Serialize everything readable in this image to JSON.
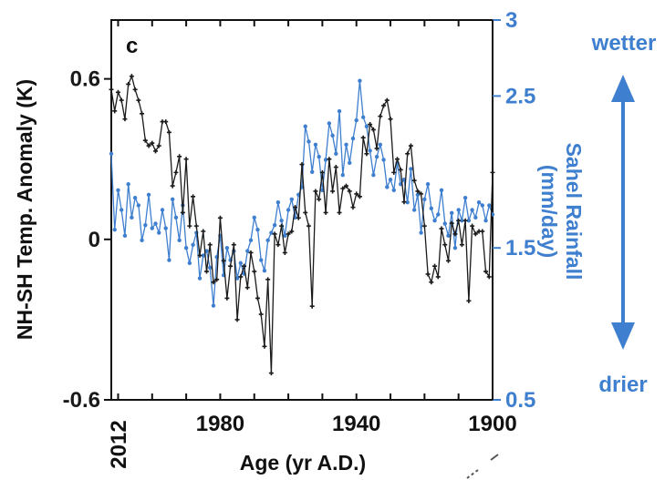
{
  "chart_data": {
    "type": "line",
    "panel_label": "c",
    "xlabel": "Age (yr A.D.)",
    "x_start_label": "2012",
    "xlim": [
      2012,
      1900
    ],
    "x_ticks": [
      1980,
      1940,
      1900
    ],
    "y_left": {
      "label": "NH-SH Temp. Anomaly  (K)",
      "lim": [
        -0.6,
        0.82
      ],
      "ticks": [
        0.6,
        0,
        -0.6
      ],
      "tick_labels": [
        "0.6",
        "0",
        "-0.6"
      ],
      "color": "#1a1a1a"
    },
    "y_right": {
      "label_line1": "Sahel Rainfall",
      "label_line2": "(mm/day)",
      "lim": [
        0.5,
        3.0
      ],
      "ticks": [
        3,
        2.5,
        1.5,
        0.5
      ],
      "tick_labels": [
        "3",
        "2.5",
        "1.5",
        "0.5"
      ],
      "color": "#3f7fcf"
    },
    "annotations": {
      "top": "wetter",
      "bottom": "drier"
    },
    "series": [
      {
        "axis": "left",
        "color": "#1a1a1a",
        "x": [
          2012,
          2011,
          2010,
          2009,
          2008,
          2007,
          2006,
          2005,
          2004,
          2003,
          2002,
          2001,
          2000,
          1999,
          1998,
          1997,
          1996,
          1995,
          1994,
          1993,
          1992,
          1991,
          1990,
          1989,
          1988,
          1987,
          1986,
          1985,
          1984,
          1983,
          1982,
          1981,
          1980,
          1979,
          1978,
          1977,
          1976,
          1975,
          1974,
          1973,
          1972,
          1971,
          1970,
          1969,
          1968,
          1967,
          1966,
          1965,
          1964,
          1963,
          1962,
          1961,
          1960,
          1959,
          1958,
          1957,
          1956,
          1955,
          1954,
          1953,
          1952,
          1951,
          1950,
          1949,
          1948,
          1947,
          1946,
          1945,
          1944,
          1943,
          1942,
          1941,
          1940,
          1939,
          1938,
          1937,
          1936,
          1935,
          1934,
          1933,
          1932,
          1931,
          1930,
          1929,
          1928,
          1927,
          1926,
          1925,
          1924,
          1923,
          1922,
          1921,
          1920,
          1919,
          1918,
          1917,
          1916,
          1915,
          1914,
          1913,
          1912,
          1911,
          1910,
          1909,
          1908,
          1907,
          1906,
          1905,
          1904,
          1903,
          1902,
          1901,
          1900
        ],
        "y": [
          0.56,
          0.48,
          0.55,
          0.52,
          0.45,
          0.58,
          0.61,
          0.56,
          0.52,
          0.47,
          0.37,
          0.35,
          0.36,
          0.33,
          0.35,
          0.44,
          0.44,
          0.4,
          0.2,
          0.25,
          0.31,
          0.1,
          0.3,
          0.05,
          0.16,
          0.05,
          -0.06,
          0.03,
          -0.12,
          -0.02,
          -0.16,
          -0.15,
          0.08,
          -0.08,
          -0.22,
          -0.1,
          -0.02,
          -0.3,
          -0.14,
          -0.1,
          -0.18,
          -0.05,
          -0.12,
          -0.22,
          -0.28,
          -0.4,
          -0.15,
          -0.5,
          0.02,
          -0.02,
          0.05,
          -0.05,
          0.02,
          0.03,
          0.12,
          0.08,
          0.28,
          0.1,
          0.05,
          -0.25,
          0.18,
          0.15,
          0.25,
          0.1,
          0.3,
          0.18,
          0.27,
          0.1,
          0.19,
          0.2,
          0.18,
          0.12,
          0.17,
          0.16,
          0.38,
          0.32,
          0.43,
          0.41,
          0.34,
          0.46,
          0.5,
          0.52,
          0.45,
          0.25,
          0.3,
          0.26,
          0.14,
          0.32,
          0.35,
          0.22,
          0.18,
          0.17,
          0.05,
          -0.13,
          -0.16,
          -0.1,
          -0.14,
          0.04,
          -0.02,
          -0.08,
          0.06,
          0.02,
          0.07,
          -0.02,
          0.07,
          -0.23,
          0.05,
          0.02,
          0.03,
          0.03,
          -0.12,
          -0.14,
          0.25
        ]
      },
      {
        "axis": "right",
        "color": "#3f7fcf",
        "x": [
          2012,
          2011,
          2010,
          2009,
          2008,
          2007,
          2006,
          2005,
          2004,
          2003,
          2002,
          2001,
          2000,
          1999,
          1998,
          1997,
          1996,
          1995,
          1994,
          1993,
          1992,
          1991,
          1990,
          1989,
          1988,
          1987,
          1986,
          1985,
          1984,
          1983,
          1982,
          1981,
          1980,
          1979,
          1978,
          1977,
          1976,
          1975,
          1974,
          1973,
          1972,
          1971,
          1970,
          1969,
          1968,
          1967,
          1966,
          1965,
          1964,
          1963,
          1962,
          1961,
          1960,
          1959,
          1958,
          1957,
          1956,
          1955,
          1954,
          1953,
          1952,
          1951,
          1950,
          1949,
          1948,
          1947,
          1946,
          1945,
          1944,
          1943,
          1942,
          1941,
          1940,
          1939,
          1938,
          1937,
          1936,
          1935,
          1934,
          1933,
          1932,
          1931,
          1930,
          1929,
          1928,
          1927,
          1926,
          1925,
          1924,
          1923,
          1922,
          1921,
          1920,
          1919,
          1918,
          1917,
          1916,
          1915,
          1914,
          1913,
          1912,
          1911,
          1910,
          1909,
          1908,
          1907,
          1906,
          1905,
          1904,
          1903,
          1902,
          1901,
          1900
        ],
        "y": [
          2.12,
          1.62,
          1.88,
          1.75,
          1.58,
          1.92,
          1.7,
          1.83,
          1.78,
          1.55,
          1.65,
          1.85,
          1.63,
          1.66,
          1.6,
          1.75,
          1.63,
          1.42,
          1.82,
          1.7,
          1.55,
          1.78,
          1.5,
          1.4,
          1.52,
          1.6,
          1.3,
          1.45,
          1.48,
          1.37,
          1.12,
          1.44,
          1.58,
          1.32,
          1.5,
          1.42,
          1.48,
          1.3,
          1.4,
          1.33,
          1.48,
          1.55,
          1.7,
          1.62,
          1.42,
          1.35,
          1.55,
          1.6,
          1.65,
          1.8,
          1.68,
          1.58,
          1.75,
          1.82,
          1.7,
          1.85,
          1.9,
          2.3,
          2.2,
          2.0,
          2.18,
          2.1,
          1.88,
          2.08,
          2.32,
          2.24,
          2.12,
          2.4,
          1.98,
          2.18,
          2.06,
          2.22,
          2.34,
          2.6,
          2.36,
          2.3,
          2.14,
          1.98,
          2.1,
          2.18,
          2.08,
          1.9,
          1.95,
          1.88,
          2.06,
          1.92,
          1.95,
          1.8,
          2.02,
          1.75,
          1.85,
          1.6,
          1.82,
          1.92,
          1.76,
          1.68,
          1.72,
          1.88,
          1.66,
          1.58,
          1.73,
          1.5,
          1.75,
          1.68,
          1.83,
          1.68,
          1.75,
          1.7,
          1.8,
          1.78,
          1.68,
          1.78,
          1.72
        ]
      }
    ]
  }
}
